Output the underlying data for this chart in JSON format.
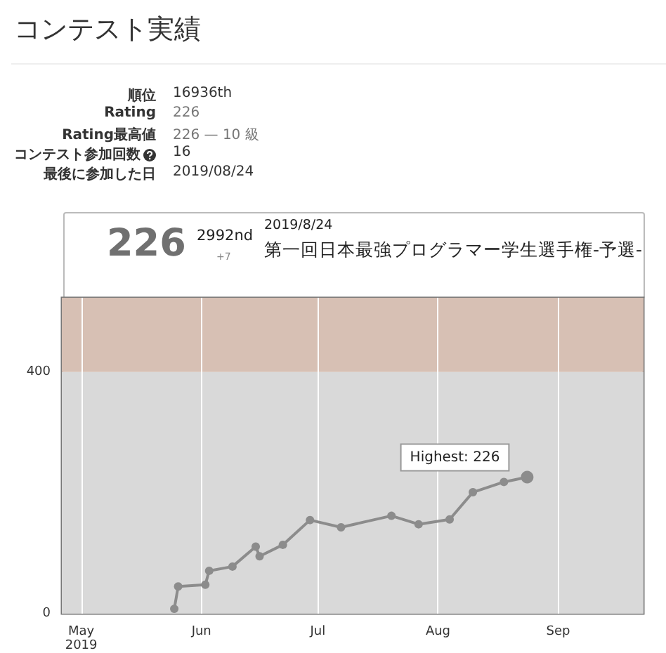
{
  "chart_data": {
    "type": "line",
    "title": "コンテスト実績",
    "annotations": [
      "順位",
      "16936th",
      "Rating",
      "226",
      "Rating最高値",
      "226 — 10 級",
      "コンテスト参加回数",
      "16",
      "最後に参加した日",
      "2019/08/24",
      "226",
      "2992nd",
      "+7",
      "2019/8/24",
      "第一回日本最強プログラマー学生選手権-予選-",
      {
        "text": "Highest: 226",
        "x": "2019-08-24",
        "y": 226
      }
    ],
    "x": [
      "2019-05-25",
      "2019-05-26",
      "2019-06-02",
      "2019-06-03",
      "2019-06-09",
      "2019-06-15",
      "2019-06-16",
      "2019-06-22",
      "2019-06-29",
      "2019-07-07",
      "2019-07-20",
      "2019-07-27",
      "2019-08-04",
      "2019-08-10",
      "2019-08-18",
      "2019-08-24"
    ],
    "series": [
      {
        "color": "#8c8c8c",
        "values": [
          8,
          45,
          48,
          71,
          78,
          111,
          95,
          114,
          155,
          143,
          162,
          148,
          156,
          201,
          218,
          226
        ]
      }
    ],
    "xlim": [
      "2019-04-26",
      "2019-09-23"
    ],
    "xticks": [
      {
        "value": "2019-05-01",
        "label": "May\n2019"
      },
      {
        "value": "2019-06-01",
        "label": "Jun"
      },
      {
        "value": "2019-07-01",
        "label": "Jul"
      },
      {
        "value": "2019-08-01",
        "label": "Aug"
      },
      {
        "value": "2019-09-01",
        "label": "Sep"
      }
    ],
    "ylim": [
      0,
      523
    ],
    "yticks": [
      0,
      400
    ],
    "bands": [
      {
        "axis": "y",
        "from": 0,
        "to": 400,
        "color": "#d9d9d9"
      },
      {
        "axis": "y",
        "from": 400,
        "to": 523,
        "color": "#d7c0b4"
      }
    ],
    "grid": "x",
    "marker": "circle",
    "line_style": "solid"
  }
}
